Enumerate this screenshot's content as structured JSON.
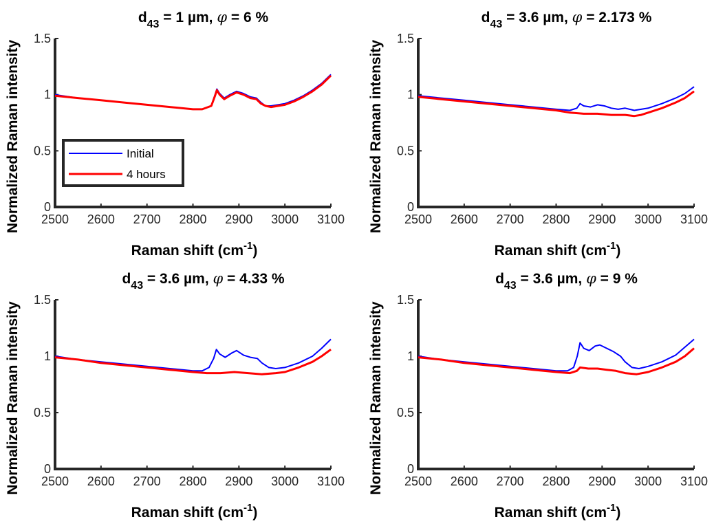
{
  "chart_data": [
    {
      "type": "line",
      "title": {
        "main": "d",
        "sub": "43",
        "mid": " = 1 µm, ",
        "phi": "φ",
        "rest": " = 6 %"
      },
      "xlabel": {
        "text": "Raman shift (cm",
        "sup": "-1",
        "end": ")"
      },
      "ylabel": "Normalized Raman intensity",
      "xlim": [
        2500,
        3100
      ],
      "ylim": [
        0,
        1.5
      ],
      "xticks": [
        "2500",
        "2600",
        "2700",
        "2800",
        "2900",
        "3000",
        "3100"
      ],
      "yticks": [
        "0",
        "0.5",
        "1",
        "1.5"
      ],
      "grid": false,
      "legend": {
        "position": "left-middle",
        "entries": [
          "Initial",
          "4 hours"
        ]
      },
      "series": [
        {
          "name": "Initial",
          "color": "#0000ff",
          "x": [
            2500,
            2550,
            2600,
            2650,
            2700,
            2750,
            2800,
            2820,
            2840,
            2848,
            2852,
            2858,
            2868,
            2880,
            2895,
            2910,
            2925,
            2938,
            2948,
            2958,
            2970,
            2985,
            3000,
            3020,
            3040,
            3060,
            3080,
            3100
          ],
          "y": [
            1.0,
            0.97,
            0.95,
            0.93,
            0.91,
            0.89,
            0.87,
            0.87,
            0.9,
            1.0,
            1.05,
            1.01,
            0.97,
            1.0,
            1.03,
            1.01,
            0.98,
            0.97,
            0.93,
            0.9,
            0.9,
            0.91,
            0.92,
            0.95,
            0.99,
            1.04,
            1.1,
            1.18
          ]
        },
        {
          "name": "4 hours",
          "color": "#ff0000",
          "x": [
            2500,
            2550,
            2600,
            2650,
            2700,
            2750,
            2800,
            2820,
            2840,
            2848,
            2852,
            2858,
            2868,
            2880,
            2895,
            2910,
            2925,
            2938,
            2948,
            2958,
            2970,
            2985,
            3000,
            3020,
            3040,
            3060,
            3080,
            3100
          ],
          "y": [
            0.99,
            0.97,
            0.95,
            0.93,
            0.91,
            0.89,
            0.87,
            0.87,
            0.9,
            0.99,
            1.04,
            1.0,
            0.96,
            0.99,
            1.02,
            1.0,
            0.97,
            0.96,
            0.92,
            0.9,
            0.89,
            0.9,
            0.91,
            0.94,
            0.98,
            1.03,
            1.09,
            1.17
          ]
        }
      ]
    },
    {
      "type": "line",
      "title": {
        "main": "d",
        "sub": "43",
        "mid": " = 3.6 µm, ",
        "phi": "φ",
        "rest": " = 2.173 %"
      },
      "xlabel": {
        "text": "Raman shift (cm",
        "sup": "-1",
        "end": ")"
      },
      "ylabel": "Normalized Raman intensity",
      "xlim": [
        2500,
        3100
      ],
      "ylim": [
        0,
        1.5
      ],
      "xticks": [
        "2500",
        "2600",
        "2700",
        "2800",
        "2900",
        "3000",
        "3100"
      ],
      "yticks": [
        "0",
        "0.5",
        "1",
        "1.5"
      ],
      "grid": false,
      "series": [
        {
          "name": "Initial",
          "color": "#0000ff",
          "x": [
            2500,
            2550,
            2600,
            2650,
            2700,
            2750,
            2800,
            2830,
            2845,
            2852,
            2860,
            2875,
            2890,
            2905,
            2920,
            2935,
            2950,
            2970,
            2985,
            3000,
            3030,
            3060,
            3080,
            3100
          ],
          "y": [
            0.99,
            0.97,
            0.95,
            0.93,
            0.91,
            0.89,
            0.87,
            0.86,
            0.88,
            0.92,
            0.9,
            0.89,
            0.91,
            0.9,
            0.88,
            0.87,
            0.88,
            0.86,
            0.87,
            0.88,
            0.92,
            0.97,
            1.01,
            1.07
          ]
        },
        {
          "name": "4 hours",
          "color": "#ff0000",
          "x": [
            2500,
            2550,
            2600,
            2650,
            2700,
            2750,
            2800,
            2830,
            2860,
            2890,
            2920,
            2950,
            2970,
            2985,
            3000,
            3030,
            3060,
            3080,
            3100
          ],
          "y": [
            0.98,
            0.96,
            0.94,
            0.92,
            0.9,
            0.88,
            0.86,
            0.84,
            0.83,
            0.83,
            0.82,
            0.82,
            0.81,
            0.82,
            0.84,
            0.88,
            0.93,
            0.97,
            1.03
          ]
        }
      ]
    },
    {
      "type": "line",
      "title": {
        "main": "d",
        "sub": "43",
        "mid": " = 3.6 µm, ",
        "phi": "φ",
        "rest": " = 4.33 %"
      },
      "xlabel": {
        "text": "Raman shift (cm",
        "sup": "-1",
        "end": ")"
      },
      "ylabel": "Normalized Raman intensity",
      "xlim": [
        2500,
        3100
      ],
      "ylim": [
        0,
        1.5
      ],
      "xticks": [
        "2500",
        "2600",
        "2700",
        "2800",
        "2900",
        "3000",
        "3100"
      ],
      "yticks": [
        "0",
        "0.5",
        "1",
        "1.5"
      ],
      "grid": false,
      "series": [
        {
          "name": "Initial",
          "color": "#0000ff",
          "x": [
            2500,
            2550,
            2600,
            2650,
            2700,
            2750,
            2800,
            2820,
            2835,
            2845,
            2851,
            2858,
            2870,
            2885,
            2895,
            2910,
            2925,
            2940,
            2950,
            2965,
            2980,
            3000,
            3030,
            3060,
            3080,
            3100
          ],
          "y": [
            1.0,
            0.97,
            0.95,
            0.93,
            0.91,
            0.89,
            0.87,
            0.87,
            0.9,
            0.98,
            1.06,
            1.02,
            0.99,
            1.03,
            1.05,
            1.01,
            0.99,
            0.98,
            0.94,
            0.9,
            0.89,
            0.9,
            0.94,
            1.0,
            1.07,
            1.15
          ]
        },
        {
          "name": "4 hours",
          "color": "#ff0000",
          "x": [
            2500,
            2550,
            2600,
            2650,
            2700,
            2750,
            2800,
            2830,
            2860,
            2890,
            2920,
            2950,
            2980,
            3000,
            3030,
            3060,
            3080,
            3100
          ],
          "y": [
            0.99,
            0.97,
            0.94,
            0.92,
            0.9,
            0.88,
            0.86,
            0.85,
            0.85,
            0.86,
            0.85,
            0.84,
            0.85,
            0.86,
            0.9,
            0.95,
            1.0,
            1.06
          ]
        }
      ]
    },
    {
      "type": "line",
      "title": {
        "main": "d",
        "sub": "43",
        "mid": " = 3.6 µm, ",
        "phi": "φ",
        "rest": " = 9 %"
      },
      "xlabel": {
        "text": "Raman shift (cm",
        "sup": "-1",
        "end": ")"
      },
      "ylabel": "Normalized Raman intensity",
      "xlim": [
        2500,
        3100
      ],
      "ylim": [
        0,
        1.5
      ],
      "xticks": [
        "2500",
        "2600",
        "2700",
        "2800",
        "2900",
        "3000",
        "3100"
      ],
      "yticks": [
        "0",
        "0.5",
        "1",
        "1.5"
      ],
      "grid": false,
      "series": [
        {
          "name": "Initial",
          "color": "#0000ff",
          "x": [
            2500,
            2550,
            2600,
            2650,
            2700,
            2750,
            2800,
            2825,
            2838,
            2846,
            2852,
            2860,
            2872,
            2885,
            2895,
            2910,
            2925,
            2940,
            2950,
            2965,
            2980,
            3000,
            3030,
            3060,
            3080,
            3100
          ],
          "y": [
            1.0,
            0.97,
            0.95,
            0.93,
            0.91,
            0.89,
            0.87,
            0.87,
            0.9,
            1.0,
            1.12,
            1.07,
            1.05,
            1.09,
            1.1,
            1.07,
            1.04,
            1.0,
            0.95,
            0.9,
            0.89,
            0.91,
            0.95,
            1.01,
            1.08,
            1.15
          ]
        },
        {
          "name": "4 hours",
          "color": "#ff0000",
          "x": [
            2500,
            2550,
            2600,
            2650,
            2700,
            2750,
            2800,
            2830,
            2845,
            2852,
            2870,
            2890,
            2910,
            2930,
            2950,
            2975,
            3000,
            3030,
            3060,
            3080,
            3100
          ],
          "y": [
            0.99,
            0.97,
            0.94,
            0.92,
            0.9,
            0.88,
            0.86,
            0.85,
            0.87,
            0.9,
            0.89,
            0.89,
            0.88,
            0.87,
            0.85,
            0.84,
            0.86,
            0.9,
            0.95,
            1.0,
            1.07
          ]
        }
      ]
    }
  ]
}
